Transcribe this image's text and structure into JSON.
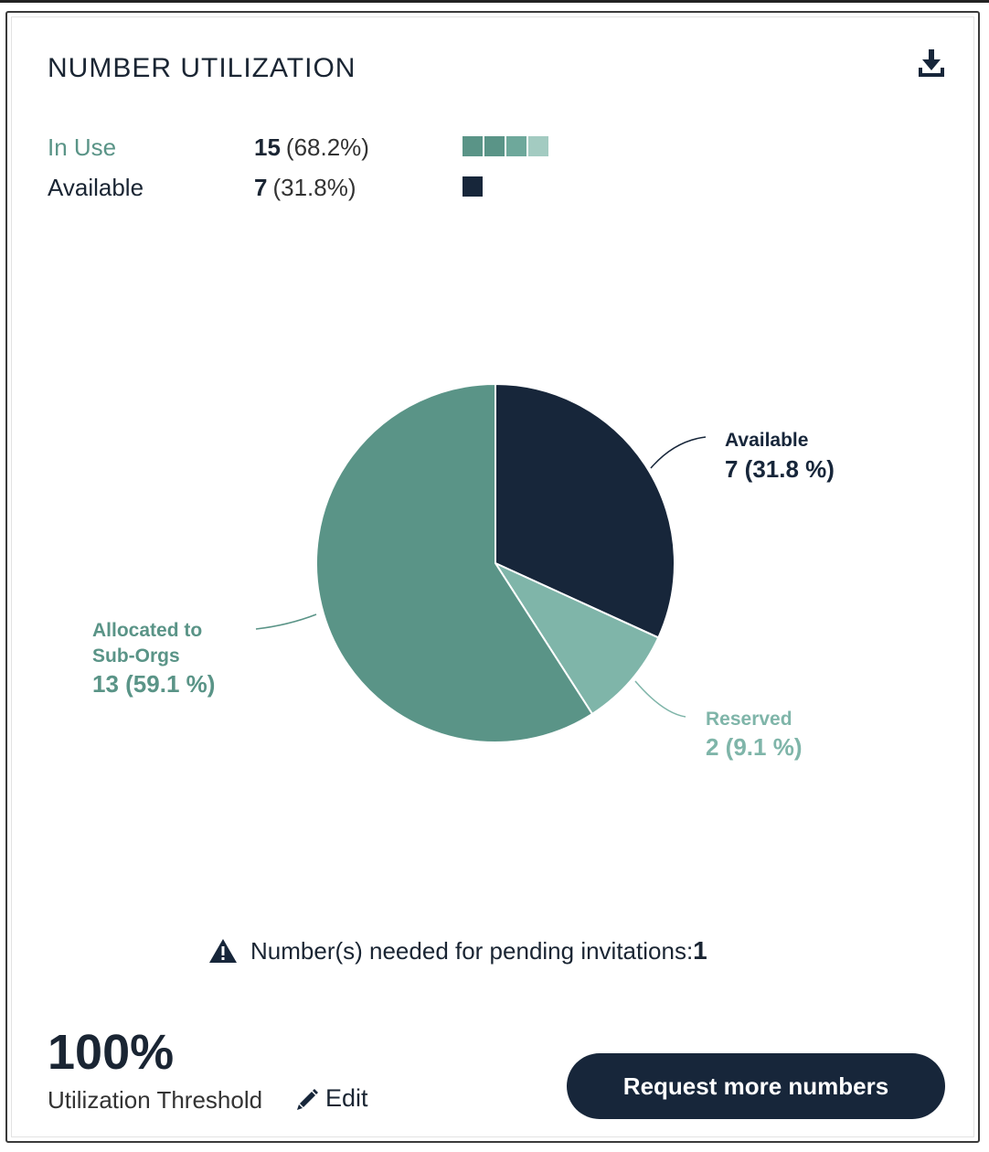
{
  "card": {
    "title": "NUMBER UTILIZATION",
    "download_icon": "download-icon"
  },
  "legend": {
    "in_use": {
      "label": "In Use",
      "count": "15",
      "percent": "(68.2%)",
      "swatch_colors": [
        "#5a9487",
        "#5a9487",
        "#6ea89b",
        "#a3cbc1"
      ]
    },
    "available": {
      "label": "Available",
      "count": "7",
      "percent": "(31.8%)",
      "swatch_colors": [
        "#17263a"
      ]
    }
  },
  "chart_data": {
    "type": "pie",
    "slices": [
      {
        "name": "Available",
        "value": 7,
        "label_value": "7 (31.8 %)",
        "color": "#17263a"
      },
      {
        "name": "Reserved",
        "value": 2,
        "label_value": "2 (9.1 %)",
        "color": "#7fb5a9"
      },
      {
        "name": "Allocated to Sub-Orgs",
        "value": 13,
        "label_value": "13 (59.1 %)",
        "color": "#5a9487"
      }
    ],
    "callout_lines": {
      "allocated_line1": "Allocated to",
      "allocated_line2": "Sub-Orgs"
    }
  },
  "warning": {
    "icon": "warning-triangle-icon",
    "text": "Number(s) needed for pending invitations:",
    "count": "1"
  },
  "threshold": {
    "value": "100%",
    "label": "Utilization Threshold",
    "edit_icon": "pencil-icon",
    "edit_label": "Edit"
  },
  "actions": {
    "request_label": "Request more numbers"
  },
  "colors": {
    "navy": "#17263a",
    "teal": "#5a9487",
    "light_teal": "#7fb5a9"
  }
}
